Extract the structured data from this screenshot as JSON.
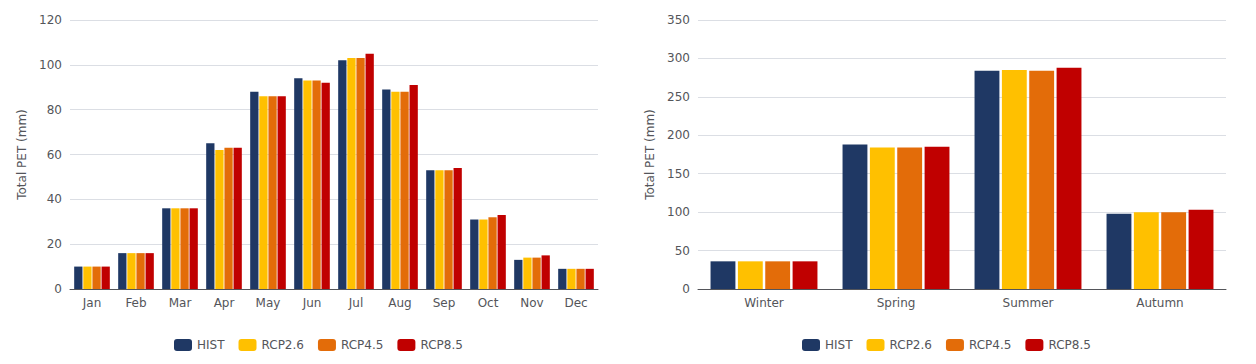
{
  "chart_data": [
    {
      "type": "bar",
      "ylabel": "Total PET (mm)",
      "categories": [
        "Jan",
        "Feb",
        "Mar",
        "Apr",
        "May",
        "Jun",
        "Jul",
        "Aug",
        "Sep",
        "Oct",
        "Nov",
        "Dec"
      ],
      "series": [
        {
          "name": "HIST",
          "color": "#1F3864",
          "values": [
            10,
            16,
            36,
            65,
            88,
            94,
            102,
            89,
            53,
            31,
            13,
            9
          ]
        },
        {
          "name": "RCP2.6",
          "color": "#FFC000",
          "values": [
            10,
            16,
            36,
            62,
            86,
            93,
            103,
            88,
            53,
            31,
            14,
            9
          ]
        },
        {
          "name": "RCP4.5",
          "color": "#E36C09",
          "values": [
            10,
            16,
            36,
            63,
            86,
            93,
            103,
            88,
            53,
            32,
            14,
            9
          ]
        },
        {
          "name": "RCP8.5",
          "color": "#C00000",
          "values": [
            10,
            16,
            36,
            63,
            86,
            92,
            105,
            91,
            54,
            33,
            15,
            9
          ]
        }
      ],
      "ylim": [
        0,
        120
      ],
      "yticks": [
        0,
        20,
        40,
        60,
        80,
        100,
        120
      ],
      "grid": true,
      "legend": "bottom"
    },
    {
      "type": "bar",
      "ylabel": "Total PET (mm)",
      "categories": [
        "Winter",
        "Spring",
        "Summer",
        "Autumn"
      ],
      "series": [
        {
          "name": "HIST",
          "color": "#1F3864",
          "values": [
            36,
            188,
            284,
            98
          ]
        },
        {
          "name": "RCP2.6",
          "color": "#FFC000",
          "values": [
            36,
            184,
            285,
            100
          ]
        },
        {
          "name": "RCP4.5",
          "color": "#E36C09",
          "values": [
            36,
            184,
            284,
            100
          ]
        },
        {
          "name": "RCP8.5",
          "color": "#C00000",
          "values": [
            36,
            185,
            288,
            103
          ]
        }
      ],
      "ylim": [
        0,
        350
      ],
      "yticks": [
        0,
        50,
        100,
        150,
        200,
        250,
        300,
        350
      ],
      "grid": true,
      "legend": "bottom"
    }
  ]
}
